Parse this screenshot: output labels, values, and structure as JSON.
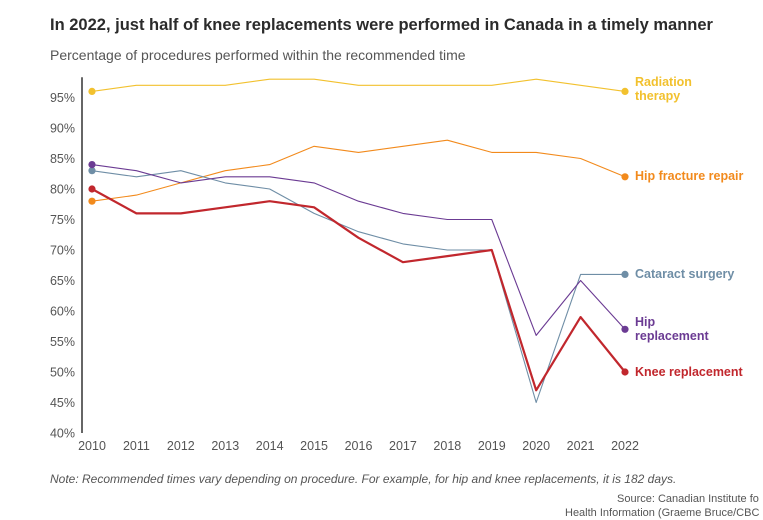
{
  "title": "In 2022, just half of knee replacements were performed in Canada in a timely manner",
  "subtitle": "Percentage of procedures performed within the recommended time",
  "note": "Note: Recommended times vary depending on procedure. For example, for hip and knee replacements, it is 182 days.",
  "source": {
    "line1": "Source: Canadian Institute fo",
    "line2": "Health Information (Graeme Bruce/CBC"
  },
  "chart_data": {
    "type": "line",
    "x": [
      2010,
      2011,
      2012,
      2013,
      2014,
      2015,
      2016,
      2017,
      2018,
      2019,
      2020,
      2021,
      2022
    ],
    "ylim": [
      40,
      98
    ],
    "yticks": [
      40,
      45,
      50,
      55,
      60,
      65,
      70,
      75,
      80,
      85,
      90,
      95
    ],
    "ytick_suffix": "%",
    "grid": false,
    "legend": "direct labels at line ends",
    "series": [
      {
        "name": "Radiation therapy",
        "label_lines": [
          "Radiation",
          "therapy"
        ],
        "color": "#f2c12e",
        "values": [
          96,
          97,
          97,
          97,
          98,
          98,
          97,
          97,
          97,
          97,
          98,
          97,
          96
        ]
      },
      {
        "name": "Hip fracture repair",
        "label_lines": [
          "Hip fracture repair"
        ],
        "color": "#f28a1c",
        "values": [
          78,
          79,
          81,
          83,
          84,
          87,
          86,
          87,
          88,
          86,
          86,
          85,
          82
        ]
      },
      {
        "name": "Cataract surgery",
        "label_lines": [
          "Cataract surgery"
        ],
        "color": "#6f8ea6",
        "values": [
          83,
          82,
          83,
          81,
          80,
          76,
          73,
          71,
          70,
          70,
          45,
          66,
          66
        ]
      },
      {
        "name": "Hip replacement",
        "label_lines": [
          "Hip",
          "replacement"
        ],
        "color": "#6b3b93",
        "values": [
          84,
          83,
          81,
          82,
          82,
          81,
          78,
          76,
          75,
          75,
          56,
          65,
          57
        ]
      },
      {
        "name": "Knee replacement",
        "label_lines": [
          "Knee replacement"
        ],
        "color": "#c1272d",
        "values": [
          80,
          76,
          76,
          77,
          78,
          77,
          72,
          68,
          69,
          70,
          47,
          59,
          50
        ]
      }
    ]
  }
}
